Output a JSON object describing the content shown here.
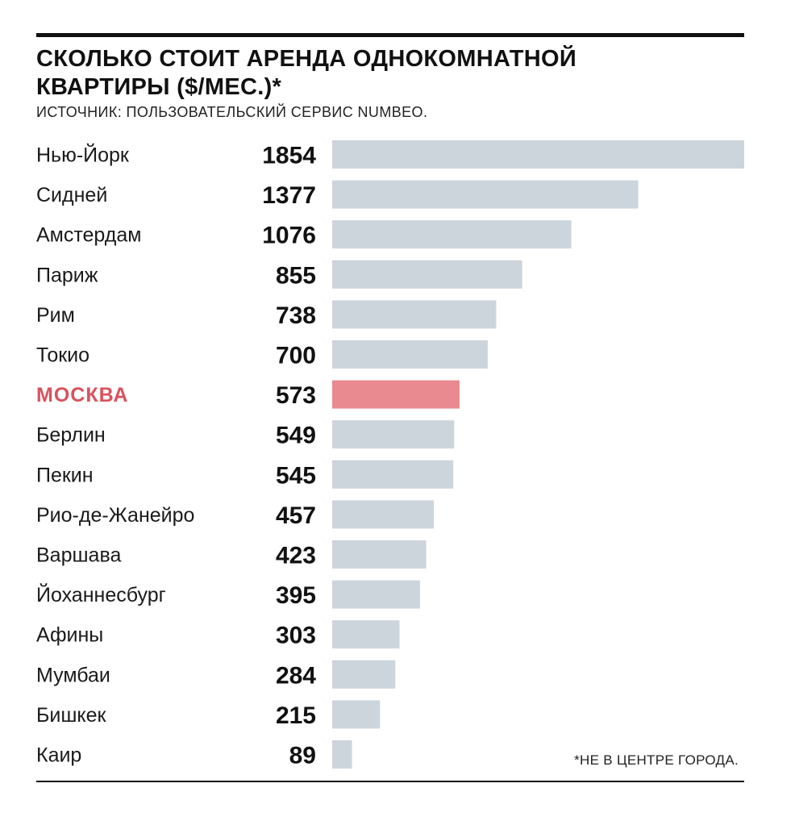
{
  "title_line1": "СКОЛЬКО СТОИТ АРЕНДА ОДНОКОМНАТНОЙ",
  "title_line2": "КВАРТИРЫ ($/МЕС.)*",
  "source": "ИСТОЧНИК: ПОЛЬЗОВАТЕЛЬСКИЙ СЕРВИС NUMBEO.",
  "footnote": "*НЕ В ЦЕНТРЕ ГОРОДА.",
  "colors": {
    "bar": "#cdd5dc",
    "highlight_bar": "#e98a90",
    "highlight_text": "#d9525c"
  },
  "chart_data": {
    "type": "bar",
    "orientation": "horizontal",
    "title": "СКОЛЬКО СТОИТ АРЕНДА ОДНОКОМНАТНОЙ КВАРТИРЫ ($/МЕС.)*",
    "xlabel": "",
    "ylabel": "",
    "grid": false,
    "legend": "none",
    "xlim": [
      0,
      1854
    ],
    "highlight": "МОСКВА",
    "categories": [
      "Нью-Йорк",
      "Сидней",
      "Амстердам",
      "Париж",
      "Рим",
      "Токио",
      "МОСКВА",
      "Берлин",
      "Пекин",
      "Рио-де-Жанейро",
      "Варшава",
      "Йоханнесбург",
      "Афины",
      "Мумбаи",
      "Бишкек",
      "Каир"
    ],
    "values": [
      1854,
      1377,
      1076,
      855,
      738,
      700,
      573,
      549,
      545,
      457,
      423,
      395,
      303,
      284,
      215,
      89
    ]
  }
}
